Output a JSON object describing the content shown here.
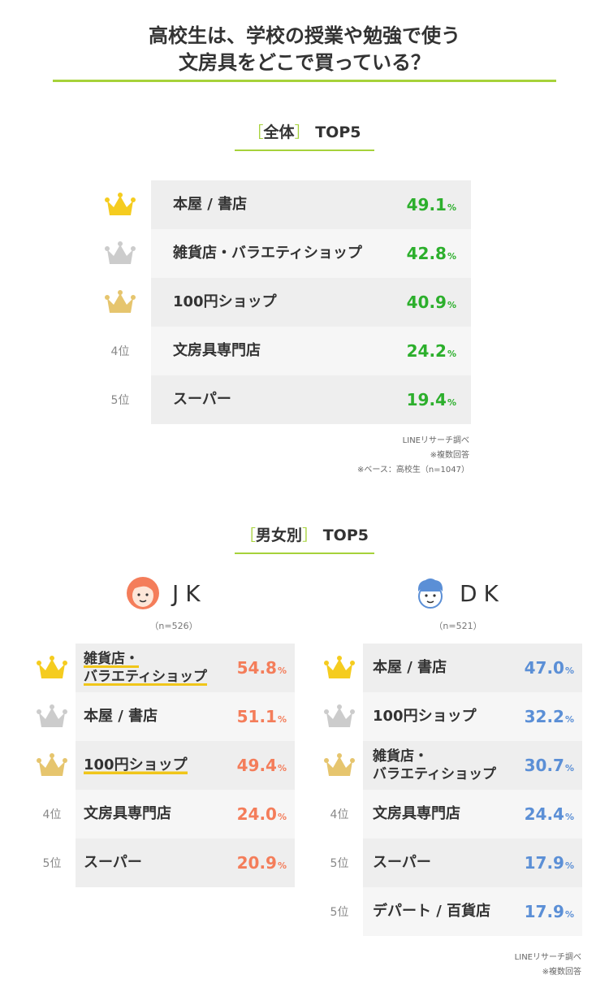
{
  "title": {
    "line1": "高校生は、学校の授業や勉強で使う",
    "line2": "文房具をどこで買っている？"
  },
  "colors": {
    "accent_green": "#a6d23a",
    "overall_value": "#2caf2c",
    "jk_value": "#f47d5a",
    "dk_value": "#5b8fd6",
    "crown_gold": "#f5cc1f",
    "crown_silver": "#cccccc",
    "crown_bronze": "#e6c56e",
    "row_bg_dark": "#eeeeee",
    "row_bg_light": "#f6f6f6"
  },
  "overall": {
    "section": {
      "bracket_open": "［",
      "label": "全体",
      "bracket_close": "］",
      "suffix": "TOP5"
    },
    "rows": [
      {
        "rank": "1",
        "rank_label": "",
        "icon": "crown-gold-icon",
        "label": "本屋 / 書店",
        "value": "49.1",
        "unit": "%"
      },
      {
        "rank": "2",
        "rank_label": "",
        "icon": "crown-silver-icon",
        "label": "雑貨店・バラエティショップ",
        "value": "42.8",
        "unit": "%"
      },
      {
        "rank": "3",
        "rank_label": "",
        "icon": "crown-bronze-icon",
        "label": "100円ショップ",
        "value": "40.9",
        "unit": "%"
      },
      {
        "rank": "4",
        "rank_label": "4位",
        "icon": "",
        "label": "文房具専門店",
        "value": "24.2",
        "unit": "%"
      },
      {
        "rank": "5",
        "rank_label": "5位",
        "icon": "",
        "label": "スーパー",
        "value": "19.4",
        "unit": "%"
      }
    ],
    "notes": [
      "LINEリサーチ調べ",
      "※複数回答",
      "※ベース：高校生（n=1047）"
    ]
  },
  "gender": {
    "section": {
      "bracket_open": "［",
      "label": "男女別",
      "bracket_close": "］",
      "suffix": "TOP5"
    },
    "jk": {
      "name": "JK",
      "icon": "girl-face-icon",
      "count": "（n=526）",
      "rows": [
        {
          "rank": "1",
          "rank_label": "",
          "icon": "crown-gold-icon",
          "label_line1": "雑貨店・",
          "label_line2": "バラエティショップ",
          "value": "54.8",
          "unit": "%",
          "underline": true
        },
        {
          "rank": "2",
          "rank_label": "",
          "icon": "crown-silver-icon",
          "label_line1": "本屋 / 書店",
          "label_line2": "",
          "value": "51.1",
          "unit": "%",
          "underline": false
        },
        {
          "rank": "3",
          "rank_label": "",
          "icon": "crown-bronze-icon",
          "label_line1": "100円ショップ",
          "label_line2": "",
          "value": "49.4",
          "unit": "%",
          "underline": true
        },
        {
          "rank": "4",
          "rank_label": "4位",
          "icon": "",
          "label_line1": "文房具専門店",
          "label_line2": "",
          "value": "24.0",
          "unit": "%",
          "underline": false
        },
        {
          "rank": "5",
          "rank_label": "5位",
          "icon": "",
          "label_line1": "スーパー",
          "label_line2": "",
          "value": "20.9",
          "unit": "%",
          "underline": false
        }
      ]
    },
    "dk": {
      "name": "DK",
      "icon": "boy-face-icon",
      "count": "（n=521）",
      "rows": [
        {
          "rank": "1",
          "rank_label": "",
          "icon": "crown-gold-icon",
          "label_line1": "本屋 / 書店",
          "label_line2": "",
          "value": "47.0",
          "unit": "%"
        },
        {
          "rank": "2",
          "rank_label": "",
          "icon": "crown-silver-icon",
          "label_line1": "100円ショップ",
          "label_line2": "",
          "value": "32.2",
          "unit": "%"
        },
        {
          "rank": "3",
          "rank_label": "",
          "icon": "crown-bronze-icon",
          "label_line1": "雑貨店・",
          "label_line2": "バラエティショップ",
          "value": "30.7",
          "unit": "%"
        },
        {
          "rank": "4",
          "rank_label": "4位",
          "icon": "",
          "label_line1": "文房具専門店",
          "label_line2": "",
          "value": "24.4",
          "unit": "%"
        },
        {
          "rank": "5",
          "rank_label": "5位",
          "icon": "",
          "label_line1": "スーパー",
          "label_line2": "",
          "value": "17.9",
          "unit": "%"
        },
        {
          "rank": "5",
          "rank_label": "5位",
          "icon": "",
          "label_line1": "デパート / 百貨店",
          "label_line2": "",
          "value": "17.9",
          "unit": "%"
        }
      ]
    },
    "notes": [
      "LINEリサーチ調べ",
      "※複数回答"
    ]
  },
  "chart_data": [
    {
      "type": "table",
      "title": "全体 TOP5",
      "categories": [
        "本屋 / 書店",
        "雑貨店・バラエティショップ",
        "100円ショップ",
        "文房具専門店",
        "スーパー"
      ],
      "values": [
        49.1,
        42.8,
        40.9,
        24.2,
        19.4
      ],
      "unit": "%"
    },
    {
      "type": "table",
      "title": "JK",
      "categories": [
        "雑貨店・バラエティショップ",
        "本屋 / 書店",
        "100円ショップ",
        "文房具専門店",
        "スーパー"
      ],
      "values": [
        54.8,
        51.1,
        49.4,
        24.0,
        20.9
      ],
      "unit": "%"
    },
    {
      "type": "table",
      "title": "DK",
      "categories": [
        "本屋 / 書店",
        "100円ショップ",
        "雑貨店・バラエティショップ",
        "文房具専門店",
        "スーパー",
        "デパート / 百貨店"
      ],
      "values": [
        47.0,
        32.2,
        30.7,
        24.4,
        17.9,
        17.9
      ],
      "unit": "%"
    }
  ]
}
